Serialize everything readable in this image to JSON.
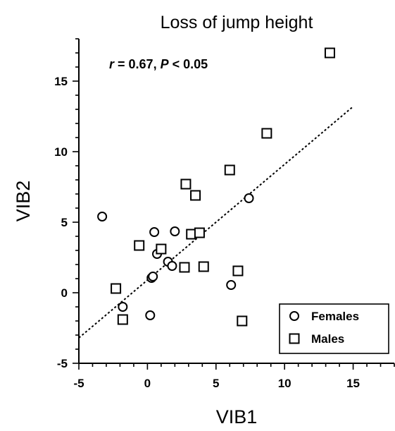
{
  "chart_data": {
    "type": "scatter",
    "title": "Loss of jump height",
    "xlabel": "VIB1",
    "ylabel": "VIB2",
    "xlim": [
      -5,
      18
    ],
    "ylim": [
      -5,
      18
    ],
    "xticks": [
      -5,
      0,
      5,
      10,
      15
    ],
    "yticks": [
      -5,
      0,
      5,
      10,
      15
    ],
    "annotation": {
      "r_symbol": "r",
      "r_text": " = 0.67, ",
      "p_symbol": "P",
      "p_text": " < 0.05"
    },
    "legend_position": "bottom-right",
    "series": [
      {
        "name": "Females",
        "marker": "circle",
        "points": [
          [
            -3.3,
            5.4
          ],
          [
            0.5,
            4.3
          ],
          [
            2.0,
            4.35
          ],
          [
            7.4,
            6.7
          ],
          [
            0.7,
            2.75
          ],
          [
            1.5,
            2.2
          ],
          [
            1.8,
            1.9
          ],
          [
            0.3,
            1.05
          ],
          [
            0.4,
            1.15
          ],
          [
            6.1,
            0.55
          ],
          [
            -1.8,
            -1.0
          ],
          [
            0.2,
            -1.6
          ]
        ]
      },
      {
        "name": "Males",
        "marker": "square",
        "points": [
          [
            13.3,
            17.0
          ],
          [
            8.7,
            11.3
          ],
          [
            6.0,
            8.7
          ],
          [
            2.8,
            7.7
          ],
          [
            3.5,
            6.9
          ],
          [
            3.2,
            4.15
          ],
          [
            3.8,
            4.25
          ],
          [
            -0.6,
            3.35
          ],
          [
            1.0,
            3.1
          ],
          [
            2.7,
            1.8
          ],
          [
            4.1,
            1.85
          ],
          [
            6.6,
            1.55
          ],
          [
            -2.3,
            0.3
          ],
          [
            -1.8,
            -1.9
          ],
          [
            6.9,
            -2.0
          ]
        ]
      }
    ],
    "fit_line": {
      "style": "dotted",
      "x": [
        -5,
        15
      ],
      "y": [
        -3.2,
        13.2
      ]
    }
  }
}
